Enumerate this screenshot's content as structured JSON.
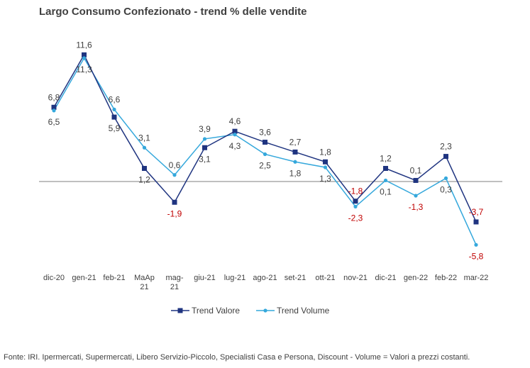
{
  "title": "Largo Consumo Confezionato - trend % delle vendite",
  "source": "Fonte: IRI. Ipermercati, Supermercati, Libero Servizio-Piccolo,  Specialisti Casa e Persona, Discount -  Volume =  Valori a prezzi  costanti.",
  "colors": {
    "valore": "#1f3480",
    "volume": "#35a8dc",
    "negative_label": "#c00000",
    "positive_label": "#404040",
    "zero_line": "#7f7f7f"
  },
  "chart_data": {
    "type": "line",
    "categories": [
      "dic-20",
      "gen-21",
      "feb-21",
      "MaAp 21",
      "mag-21",
      "giu-21",
      "lug-21",
      "ago-21",
      "set-21",
      "ott-21",
      "nov-21",
      "dic-21",
      "gen-22",
      "feb-22",
      "mar-22"
    ],
    "category_labels": [
      [
        "dic-20"
      ],
      [
        "gen-21"
      ],
      [
        "feb-21"
      ],
      [
        "MaAp",
        "21"
      ],
      [
        "mag-",
        "21"
      ],
      [
        "giu-21"
      ],
      [
        "lug-21"
      ],
      [
        "ago-21"
      ],
      [
        "set-21"
      ],
      [
        "ott-21"
      ],
      [
        "nov-21"
      ],
      [
        "dic-21"
      ],
      [
        "gen-22"
      ],
      [
        "feb-22"
      ],
      [
        "mar-22"
      ]
    ],
    "series": [
      {
        "name": "Trend Valore",
        "marker": "square",
        "values": [
          6.8,
          11.6,
          5.9,
          1.2,
          -1.9,
          3.1,
          4.6,
          3.6,
          2.7,
          1.8,
          -1.8,
          1.2,
          0.1,
          2.3,
          -3.7
        ],
        "labels": [
          "6,8",
          "11,6",
          "5,9",
          "1,2",
          "-1,9",
          "3,1",
          "4,6",
          "3,6",
          "2,7",
          "1,8",
          "-1,8",
          "1,2",
          "0,1",
          "2,3",
          "-3,7"
        ]
      },
      {
        "name": "Trend Volume",
        "marker": "circle",
        "values": [
          6.5,
          11.3,
          6.6,
          3.1,
          0.6,
          3.9,
          4.3,
          2.5,
          1.8,
          1.3,
          -2.3,
          0.1,
          -1.3,
          0.3,
          -5.8
        ],
        "labels": [
          "6,5",
          "11,3",
          "6,6",
          "3,1",
          "0,6",
          "3,9",
          "4,3",
          "2,5",
          "1,8",
          "1,3",
          "-2,3",
          "0,1",
          "-1,3",
          "0,3",
          "-5,8"
        ]
      }
    ],
    "xlabel": "",
    "ylabel": "",
    "ylim": [
      -6.5,
      12.5
    ],
    "grid": false,
    "axis_line_at_zero": true,
    "legend_position": "bottom"
  }
}
